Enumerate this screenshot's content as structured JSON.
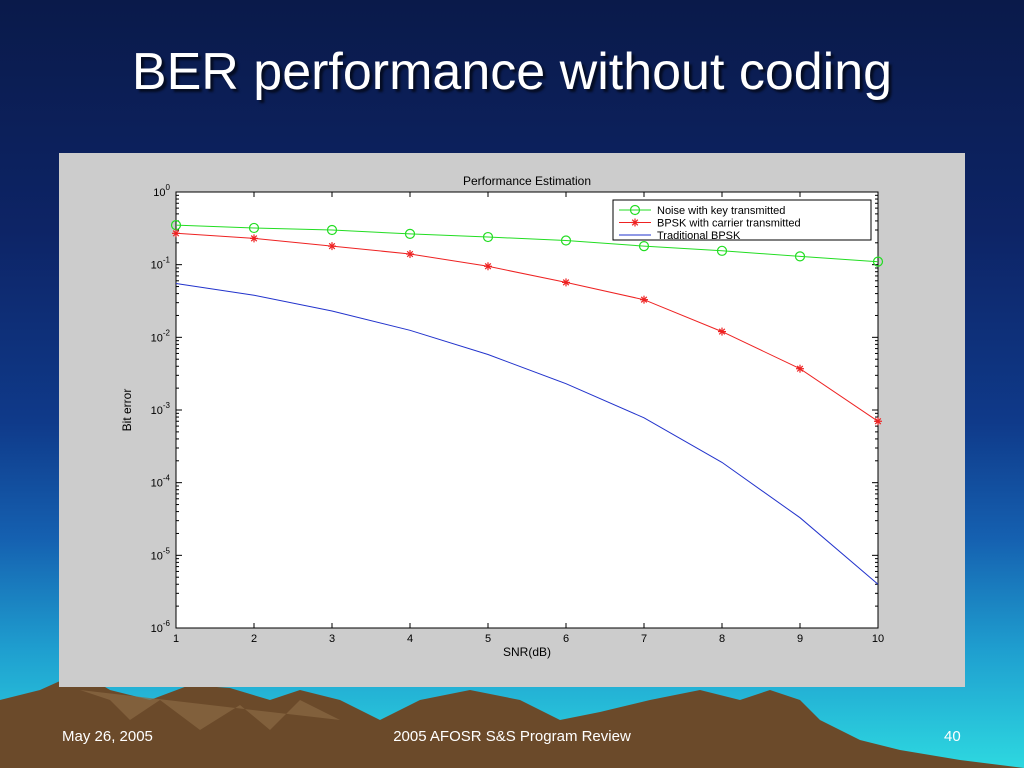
{
  "slide": {
    "title": "BER performance without coding",
    "footer_date": "May 26, 2005",
    "footer_center": "2005 AFOSR S&S Program Review",
    "footer_page": "40"
  },
  "colors": {
    "figure_bg": "#cccccc",
    "series_green": "#22dd22",
    "series_red": "#ee2222",
    "series_blue": "#2233cc"
  },
  "chart_data": {
    "type": "line",
    "title": "Performance Estimation",
    "xlabel": "SNR(dB)",
    "ylabel": "Bit error",
    "xlim": [
      1,
      10
    ],
    "ylim": [
      1e-06,
      1
    ],
    "yscale": "log",
    "grid": false,
    "legend_position": "top-right",
    "x_ticks": [
      "1",
      "2",
      "3",
      "4",
      "5",
      "6",
      "7",
      "8",
      "9",
      "10"
    ],
    "y_ticks": [
      {
        "base": "10",
        "exp": "0",
        "value": 1
      },
      {
        "base": "10",
        "exp": "-1",
        "value": 0.1
      },
      {
        "base": "10",
        "exp": "-2",
        "value": 0.01
      },
      {
        "base": "10",
        "exp": "-3",
        "value": 0.001
      },
      {
        "base": "10",
        "exp": "-4",
        "value": 0.0001
      },
      {
        "base": "10",
        "exp": "-5",
        "value": 1e-05
      },
      {
        "base": "10",
        "exp": "-6",
        "value": 1e-06
      }
    ],
    "series": [
      {
        "name": "Noise with key transmitted",
        "color": "#22dd22",
        "marker": "circle",
        "x": [
          1,
          2,
          3,
          4,
          5,
          6,
          7,
          8,
          9,
          10
        ],
        "values": [
          0.35,
          0.32,
          0.3,
          0.265,
          0.24,
          0.215,
          0.18,
          0.155,
          0.13,
          0.11
        ]
      },
      {
        "name": "BPSK with carrier transmitted",
        "color": "#ee2222",
        "marker": "star",
        "x": [
          1,
          2,
          3,
          4,
          5,
          6,
          7,
          8,
          9,
          10
        ],
        "values": [
          0.27,
          0.23,
          0.18,
          0.14,
          0.095,
          0.057,
          0.033,
          0.012,
          0.0037,
          0.0007
        ]
      },
      {
        "name": "Traditional BPSK",
        "color": "#2233cc",
        "marker": "none",
        "x": [
          1,
          2,
          3,
          4,
          5,
          6,
          7,
          8,
          9,
          10
        ],
        "values": [
          0.055,
          0.038,
          0.023,
          0.0125,
          0.0058,
          0.0023,
          0.00078,
          0.00019,
          3.3e-05,
          4e-06
        ]
      }
    ]
  }
}
